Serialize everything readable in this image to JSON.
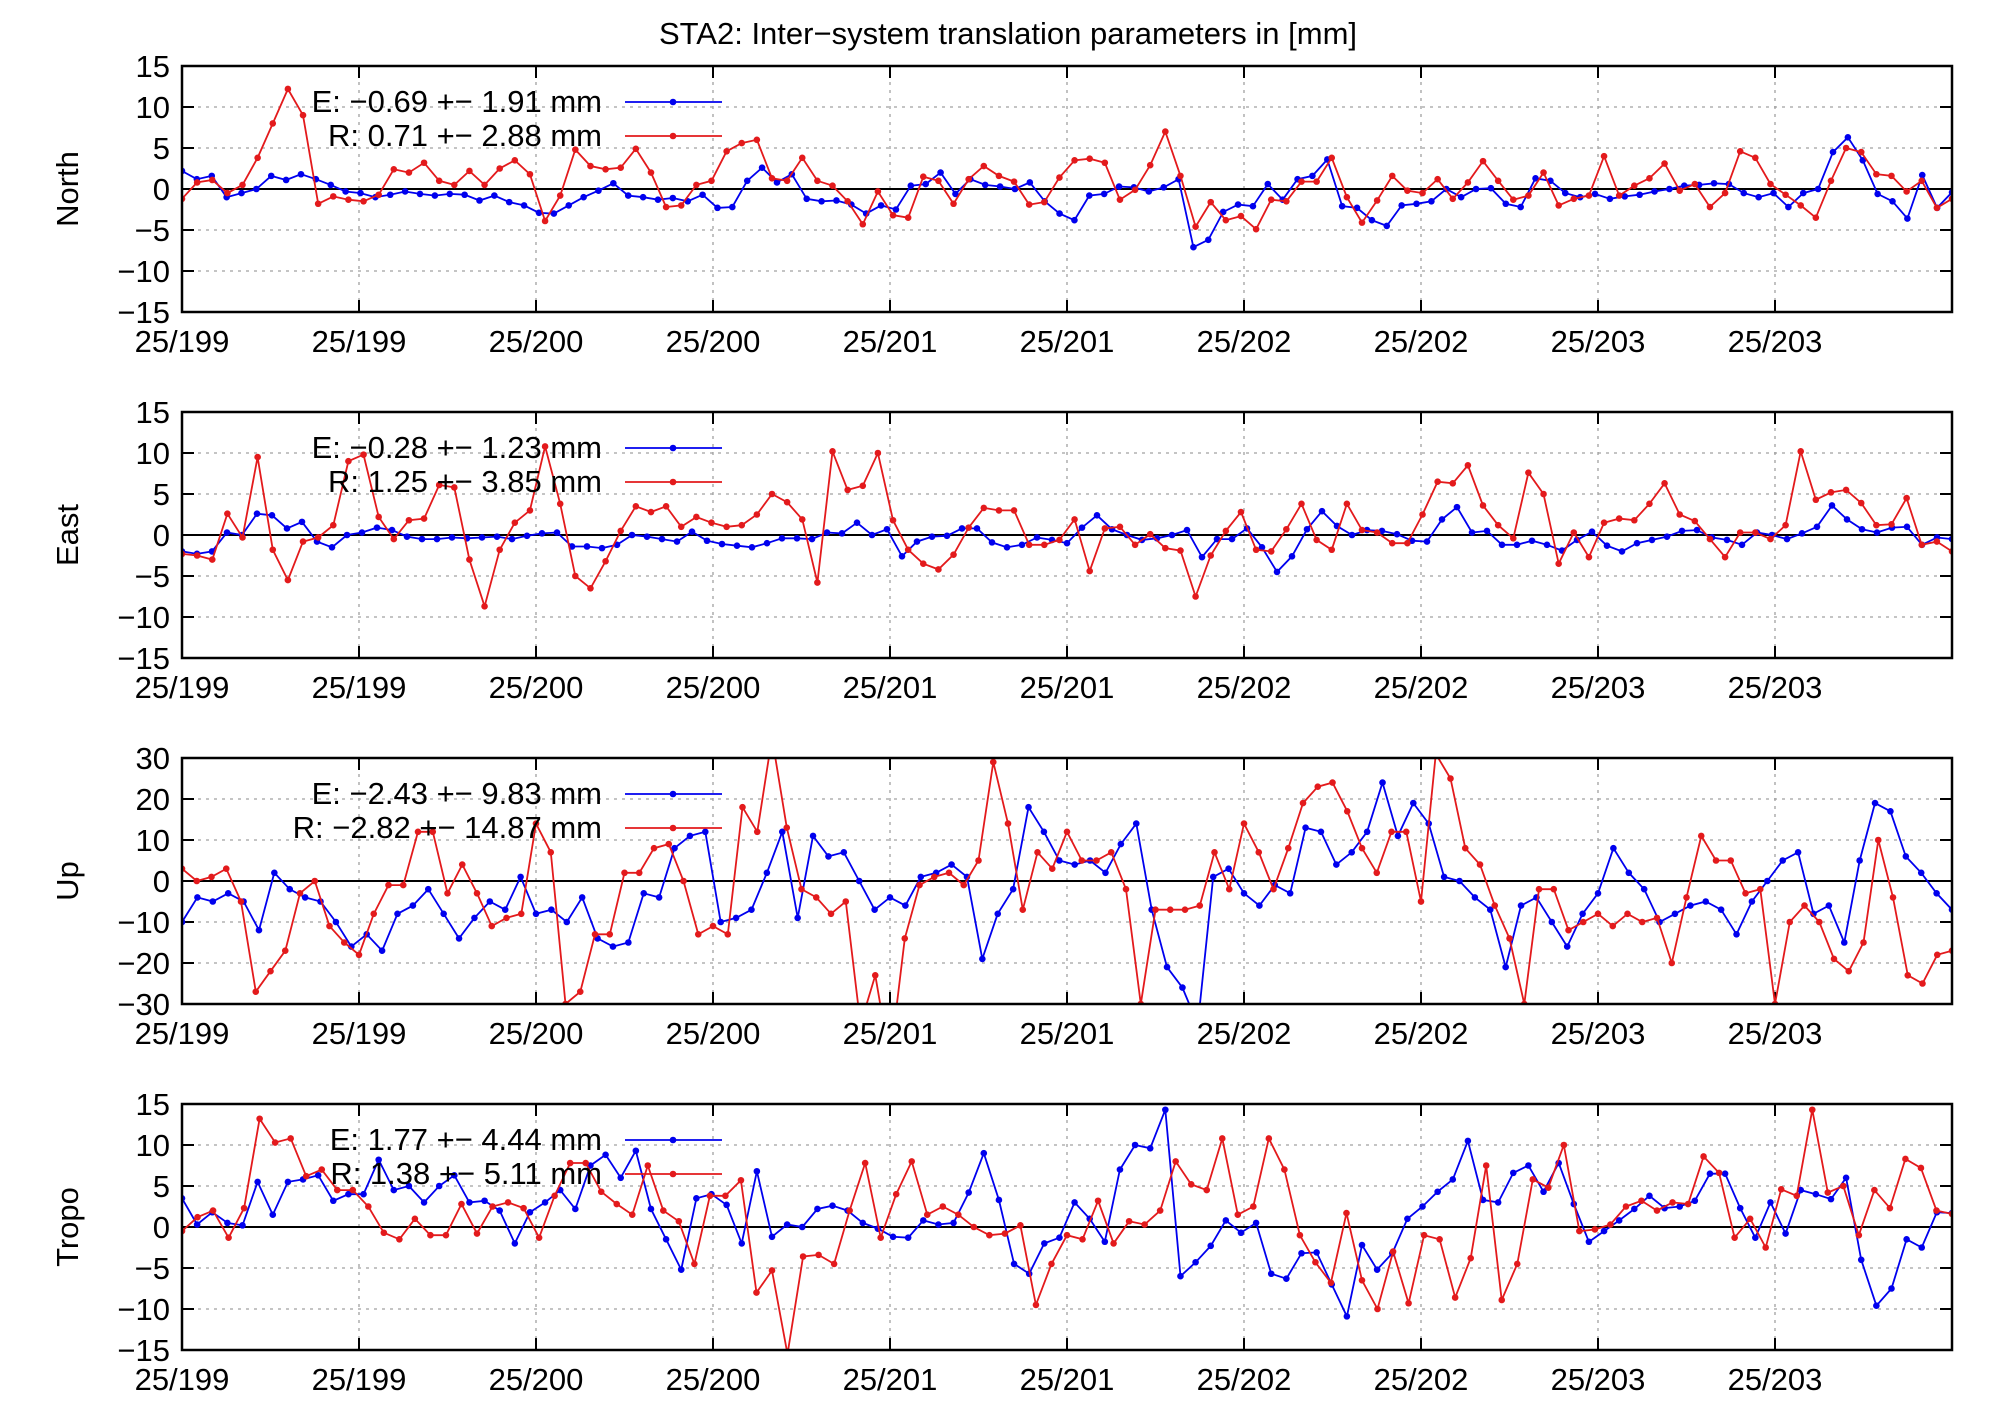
{
  "title": "STA2: Inter−system translation parameters in [mm]",
  "colors": {
    "E": "#0000ee",
    "R": "#e31a1c",
    "axis": "#000000",
    "grid": "#a0a0a0"
  },
  "x_tick_labels": [
    "25/199",
    "25/199",
    "25/200",
    "25/200",
    "25/201",
    "25/201",
    "25/202",
    "25/202",
    "25/203",
    "25/203"
  ],
  "chart_data": [
    {
      "type": "line",
      "ylabel": "North",
      "ylim": [
        -15,
        15
      ],
      "yticks": [
        -15,
        -10,
        -5,
        0,
        5,
        10,
        15
      ],
      "grid": true,
      "legend_position": "top-left",
      "series": [
        {
          "name": "E",
          "legend": "E:  −0.69 +− 1.91 mm",
          "values": [
            2.2,
            1.2,
            1.6,
            -1.0,
            -0.5,
            0.0,
            1.6,
            1.1,
            1.8,
            1.2,
            0.5,
            -0.3,
            -0.5,
            -1.0,
            -0.7,
            -0.3,
            -0.6,
            -0.8,
            -0.6,
            -0.7,
            -1.4,
            -0.8,
            -1.6,
            -2.0,
            -2.9,
            -3.0,
            -2.0,
            -1.0,
            -0.2,
            0.7,
            -0.8,
            -1.0,
            -1.3,
            -1.1,
            -1.5,
            -0.7,
            -2.3,
            -2.2,
            1.0,
            2.6,
            0.8,
            1.8,
            -1.2,
            -1.5,
            -1.4,
            -1.9,
            -3.0,
            -2.0,
            -2.5,
            0.4,
            0.6,
            2.0,
            -0.6,
            1.2,
            0.5,
            0.3,
            0.0,
            0.8,
            -1.5,
            -3.0,
            -3.8,
            -0.8,
            -0.6,
            0.3,
            0.2,
            -0.3,
            0.2,
            1.2,
            -7.1,
            -6.2,
            -2.8,
            -1.9,
            -2.1,
            0.6,
            -1.3,
            1.2,
            1.6,
            3.6,
            -2.1,
            -2.3,
            -3.8,
            -4.5,
            -2.0,
            -1.8,
            -1.5,
            0.0,
            -1.0,
            0.0,
            0.1,
            -1.8,
            -2.2,
            1.3,
            1.0,
            -0.5,
            -1.0,
            -0.6,
            -1.2,
            -0.9,
            -0.7,
            -0.3,
            0.0,
            0.4,
            0.5,
            0.7,
            0.6,
            -0.5,
            -1.0,
            -0.5,
            -2.2,
            -0.5,
            0.0,
            4.5,
            6.3,
            3.5,
            -0.6,
            -1.5,
            -3.6,
            1.7,
            -2.3,
            -0.4
          ]
        },
        {
          "name": "R",
          "legend": "R:   0.71 +− 2.88 mm",
          "values": [
            -1.2,
            0.8,
            1.1,
            -0.5,
            0.5,
            3.8,
            8.0,
            12.2,
            9.0,
            -1.8,
            -0.9,
            -1.3,
            -1.5,
            -0.7,
            2.4,
            2.0,
            3.2,
            1.0,
            0.5,
            2.2,
            0.5,
            2.5,
            3.5,
            1.8,
            -3.9,
            -0.8,
            4.8,
            2.8,
            2.4,
            2.6,
            4.9,
            2.0,
            -2.2,
            -2.0,
            0.5,
            1.0,
            4.6,
            5.6,
            6.0,
            1.3,
            1.0,
            3.8,
            1.0,
            0.4,
            -1.5,
            -4.3,
            -0.3,
            -3.2,
            -3.5,
            1.5,
            1.0,
            -1.8,
            1.2,
            2.8,
            1.6,
            0.9,
            -1.9,
            -1.6,
            1.4,
            3.5,
            3.7,
            3.2,
            -1.3,
            -0.1,
            2.9,
            7.0,
            1.6,
            -4.6,
            -1.6,
            -3.8,
            -3.3,
            -4.9,
            -1.3,
            -1.5,
            0.9,
            0.9,
            3.8,
            -1.0,
            -4.1,
            -1.4,
            1.6,
            -0.2,
            -0.5,
            1.2,
            -1.2,
            0.8,
            3.4,
            1.0,
            -1.3,
            -0.8,
            2.0,
            -2.0,
            -1.2,
            -0.8,
            4.0,
            -0.8,
            0.4,
            1.3,
            3.1,
            -0.2,
            0.6,
            -2.2,
            -0.5,
            4.6,
            3.8,
            0.6,
            -0.7,
            -2.0,
            -3.5,
            1.0,
            5.0,
            4.5,
            1.8,
            1.6,
            -0.3,
            1.0,
            -2.3,
            -1.2
          ]
        }
      ]
    },
    {
      "type": "line",
      "ylabel": "East",
      "ylim": [
        -15,
        15
      ],
      "yticks": [
        -15,
        -10,
        -5,
        0,
        5,
        10,
        15
      ],
      "grid": true,
      "legend_position": "top-left",
      "series": [
        {
          "name": "E",
          "legend": "E:  −0.28 +− 1.23 mm",
          "values": [
            -2.0,
            -2.3,
            -2.0,
            0.3,
            0.0,
            2.6,
            2.4,
            0.8,
            1.6,
            -0.8,
            -1.5,
            0.0,
            0.3,
            0.9,
            0.6,
            -0.2,
            -0.5,
            -0.5,
            -0.3,
            -0.4,
            -0.3,
            -0.2,
            -0.5,
            -0.1,
            0.2,
            0.3,
            -1.4,
            -1.4,
            -1.6,
            -1.2,
            0.0,
            -0.2,
            -0.5,
            -0.8,
            0.4,
            -0.7,
            -1.1,
            -1.3,
            -1.5,
            -1.0,
            -0.4,
            -0.4,
            -0.5,
            0.3,
            0.2,
            1.5,
            0.0,
            0.7,
            -2.6,
            -0.8,
            -0.2,
            -0.1,
            0.8,
            0.8,
            -0.9,
            -1.5,
            -1.2,
            -0.3,
            -0.6,
            -1.0,
            0.9,
            2.4,
            0.7,
            0.0,
            -0.6,
            -0.4,
            0.0,
            0.6,
            -2.7,
            -0.5,
            -0.5,
            0.8,
            -1.5,
            -4.5,
            -2.6,
            0.7,
            2.9,
            1.1,
            0.0,
            0.6,
            0.5,
            0.1,
            -0.7,
            -0.8,
            1.9,
            3.4,
            0.3,
            0.5,
            -1.2,
            -1.2,
            -0.7,
            -1.2,
            -1.9,
            -0.6,
            0.4,
            -1.3,
            -2.0,
            -1.0,
            -0.6,
            -0.2,
            0.5,
            0.6,
            -0.3,
            -0.6,
            -1.2,
            0.3,
            0.0,
            -0.5,
            0.2,
            1.0,
            3.6,
            1.9,
            0.7,
            0.3,
            0.9,
            1.0,
            -1.2,
            -0.3,
            -0.5
          ]
        },
        {
          "name": "R",
          "legend": "R:   1.25 +− 3.85 mm",
          "values": [
            -2.3,
            -2.5,
            -3.0,
            2.6,
            -0.3,
            9.5,
            -1.8,
            -5.5,
            -0.8,
            -0.3,
            1.2,
            9.0,
            9.8,
            2.2,
            -0.5,
            1.8,
            2.0,
            6.1,
            5.8,
            -3.0,
            -8.7,
            -1.8,
            1.5,
            3.0,
            10.8,
            3.8,
            -5.0,
            -6.5,
            -3.2,
            0.5,
            3.5,
            2.8,
            3.5,
            1.0,
            2.2,
            1.5,
            1.0,
            1.2,
            2.5,
            5.0,
            4.0,
            1.9,
            -5.8,
            10.2,
            5.5,
            6.0,
            10.0,
            1.8,
            -1.8,
            -3.5,
            -4.2,
            -2.4,
            0.9,
            3.3,
            3.0,
            3.0,
            -1.2,
            -1.2,
            -0.6,
            1.9,
            -4.4,
            0.8,
            1.0,
            -1.2,
            0.1,
            -1.6,
            -1.9,
            -7.5,
            -2.5,
            0.5,
            2.8,
            -1.8,
            -2.0,
            0.7,
            3.8,
            -0.6,
            -1.8,
            3.8,
            0.6,
            0.3,
            -1.0,
            -1.0,
            2.5,
            6.5,
            6.3,
            8.5,
            3.6,
            1.2,
            -0.4,
            7.6,
            5.0,
            -3.5,
            0.3,
            -2.7,
            1.5,
            2.0,
            1.8,
            3.8,
            6.3,
            2.5,
            1.7,
            -0.5,
            -2.7,
            0.3,
            0.3,
            -0.5,
            1.2,
            10.2,
            4.3,
            5.2,
            5.5,
            3.9,
            1.2,
            1.3,
            4.5,
            -1.2,
            -0.8,
            -2.0
          ]
        }
      ]
    },
    {
      "type": "line",
      "ylabel": "Up",
      "ylim": [
        -30,
        30
      ],
      "yticks": [
        -30,
        -20,
        -10,
        0,
        10,
        20,
        30
      ],
      "grid": true,
      "legend_position": "top-left",
      "series": [
        {
          "name": "E",
          "legend": "E:  −2.43 +− 9.83 mm",
          "values": [
            -10,
            -4,
            -5,
            -3,
            -5,
            -12,
            2,
            -2,
            -4,
            -5,
            -10,
            -16,
            -13,
            -17,
            -8,
            -6,
            -2,
            -8,
            -14,
            -9,
            -5,
            -7,
            1,
            -8,
            -7,
            -10,
            -4,
            -14,
            -16,
            -15,
            -3,
            -4,
            8,
            11,
            12,
            -10,
            -9,
            -7,
            2,
            12,
            -9,
            11,
            6,
            7,
            0,
            -7,
            -4,
            -6,
            1,
            2,
            4,
            1,
            -19,
            -8,
            -2,
            18,
            12,
            5,
            4,
            5,
            2,
            9,
            14,
            -7,
            -21,
            -26,
            -35,
            1,
            3,
            -3,
            -6,
            -1,
            -3,
            13,
            12,
            4,
            7,
            12,
            24,
            11,
            19,
            14,
            1,
            0,
            -4,
            -7,
            -21,
            -6,
            -4,
            -10,
            -16,
            -8,
            -3,
            8,
            2,
            -2,
            -10,
            -8,
            -6,
            -5,
            -7,
            -13,
            -5,
            0,
            5,
            7,
            -8,
            -6,
            -15,
            5,
            19,
            17,
            6,
            2,
            -3,
            -7
          ]
        },
        {
          "name": "R",
          "legend": "R:  −2.82 +− 14.87 mm",
          "values": [
            3,
            0,
            1,
            3,
            -5,
            -27,
            -22,
            -17,
            -3,
            0,
            -11,
            -15,
            -18,
            -8,
            -1,
            -1,
            12,
            12,
            -3,
            4,
            -3,
            -11,
            -9,
            -8,
            14,
            7,
            -30,
            -27,
            -13,
            -13,
            2,
            2,
            8,
            9,
            0,
            -13,
            -11,
            -13,
            18,
            12,
            35,
            13,
            -2,
            -4,
            -8,
            -5,
            -35,
            -23,
            -44,
            -14,
            -1,
            1,
            2,
            -1,
            5,
            29,
            14,
            -7,
            7,
            3,
            12,
            5,
            5,
            7,
            -2,
            -30,
            -7,
            -7,
            -7,
            -6,
            7,
            -2,
            14,
            7,
            -2,
            8,
            19,
            23,
            24,
            17,
            8,
            2,
            12,
            12,
            -5,
            31,
            25,
            8,
            4,
            -6,
            -14,
            -30,
            -2,
            -2,
            -12,
            -10,
            -8,
            -11,
            -8,
            -10,
            -9,
            -20,
            -4,
            11,
            5,
            5,
            -3,
            -2,
            -30,
            -10,
            -6,
            -10,
            -19,
            -22,
            -15,
            10,
            -4,
            -23,
            -25,
            -18,
            -17
          ]
        }
      ]
    },
    {
      "type": "line",
      "ylabel": "Tropo",
      "ylim": [
        -15,
        15
      ],
      "yticks": [
        -15,
        -10,
        -5,
        0,
        5,
        10,
        15
      ],
      "grid": true,
      "legend_position": "top-left",
      "series": [
        {
          "name": "E",
          "legend": "E:   1.77 +− 4.44 mm",
          "values": [
            3.5,
            0.3,
            1.8,
            0.5,
            0.2,
            5.5,
            1.5,
            5.5,
            5.8,
            6.3,
            3.2,
            4.0,
            4.0,
            8.2,
            4.5,
            5.0,
            3.0,
            5.0,
            6.3,
            3.0,
            3.2,
            2.0,
            -2.0,
            1.8,
            3.0,
            4.5,
            2.2,
            7.5,
            8.8,
            6.0,
            9.3,
            2.2,
            -1.5,
            -5.2,
            3.5,
            4.0,
            2.7,
            -2.0,
            6.8,
            -1.2,
            0.3,
            0.0,
            2.2,
            2.6,
            2.0,
            0.5,
            -0.2,
            -1.2,
            -1.3,
            0.8,
            0.3,
            0.5,
            4.2,
            9.0,
            3.3,
            -4.5,
            -5.7,
            -2.0,
            -1.3,
            3.0,
            1.0,
            -1.8,
            7.0,
            10.0,
            9.6,
            14.3,
            -6.0,
            -4.3,
            -2.3,
            0.8,
            -0.7,
            0.5,
            -5.7,
            -6.3,
            -3.2,
            -3.1,
            -7.0,
            -10.9,
            -2.2,
            -5.2,
            -3.2,
            1.0,
            2.5,
            4.3,
            5.8,
            10.5,
            3.3,
            3.0,
            6.6,
            7.5,
            4.3,
            7.8,
            2.8,
            -1.8,
            -0.5,
            0.8,
            2.2,
            3.8,
            2.3,
            2.5,
            3.2,
            6.5,
            6.5,
            2.3,
            -1.3,
            3.0,
            -0.8,
            4.5,
            4.0,
            3.4,
            6.0,
            -4.0,
            -9.6,
            -7.5,
            -1.5,
            -2.5,
            1.8,
            1.7
          ]
        },
        {
          "name": "R",
          "legend": "R:   1.38 +− 5.11 mm",
          "values": [
            -0.5,
            1.2,
            2.0,
            -1.3,
            2.3,
            13.2,
            10.3,
            10.8,
            6.2,
            7.0,
            4.5,
            4.5,
            2.5,
            -0.7,
            -1.5,
            1.0,
            -1.0,
            -1.0,
            2.8,
            -0.8,
            2.5,
            3.0,
            2.3,
            -1.3,
            3.8,
            7.8,
            7.8,
            4.3,
            2.8,
            1.5,
            7.5,
            2.0,
            0.7,
            -4.5,
            3.8,
            3.8,
            5.7,
            -8.0,
            -5.3,
            -15.5,
            -3.6,
            -3.4,
            -4.5,
            2.0,
            7.8,
            -1.3,
            4.0,
            8.0,
            1.5,
            2.5,
            1.5,
            0.0,
            -1.0,
            -0.8,
            0.2,
            -9.5,
            -4.5,
            -1.0,
            -1.5,
            3.2,
            -2.0,
            0.7,
            0.3,
            2.0,
            8.0,
            5.2,
            4.5,
            10.8,
            1.5,
            2.5,
            10.8,
            7.0,
            -1.0,
            -4.3,
            -6.8,
            1.7,
            -6.5,
            -10.0,
            -3.0,
            -9.3,
            -1.0,
            -1.5,
            -8.6,
            -3.8,
            7.5,
            -8.9,
            -4.5,
            5.8,
            4.8,
            10.0,
            -0.5,
            -0.3,
            0.3,
            2.5,
            3.2,
            2.0,
            3.0,
            2.8,
            8.6,
            6.6,
            -1.3,
            1.0,
            -2.5,
            4.6,
            3.8,
            14.3,
            4.2,
            5.0,
            -1.0,
            4.5,
            2.3,
            8.3,
            7.2,
            2.0,
            1.6
          ]
        }
      ]
    }
  ]
}
